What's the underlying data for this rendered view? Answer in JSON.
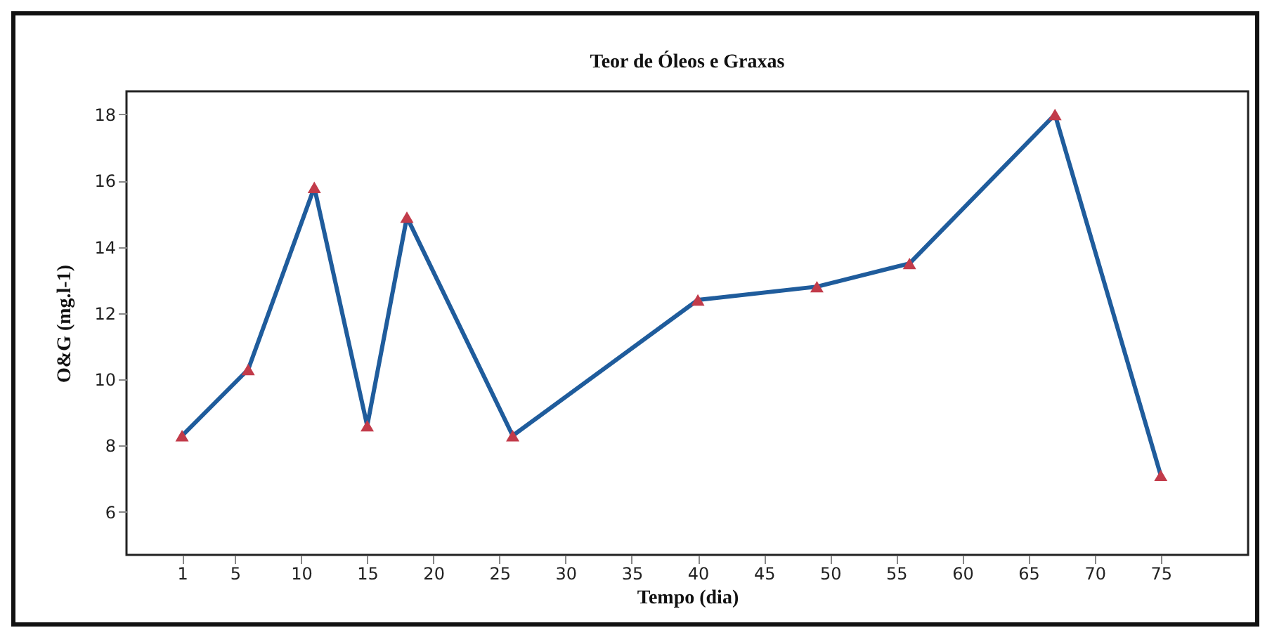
{
  "chart_data": {
    "type": "line",
    "title": "Teor de Óleos e Graxas",
    "xlabel": "Tempo (dia)",
    "ylabel": "O&G (mg.l-1)",
    "x": [
      1,
      6,
      11,
      15,
      18,
      26,
      40,
      49,
      56,
      67,
      75
    ],
    "series": [
      {
        "color": "#1f5c9c",
        "colors": [
          "#c23b4a",
          "#c23b4a",
          "#c23b4a",
          "#c23b4a",
          "#c23b4a",
          "#c23b4a",
          "#c23b4a",
          "#c23b4a",
          "#c23b4a",
          "#c23b4a",
          "#c23b4a"
        ],
        "values": [
          8.3,
          10.3,
          15.8,
          8.6,
          14.9,
          8.3,
          12.4,
          12.8,
          13.5,
          18.0,
          7.1
        ]
      }
    ],
    "marker": "triangle",
    "line_style": "solid",
    "grid": false,
    "xlim": [
      -3.2,
      81.6
    ],
    "xticks": [
      1,
      5,
      10,
      15,
      20,
      25,
      30,
      35,
      40,
      45,
      50,
      55,
      60,
      65,
      70,
      75
    ],
    "ylim": [
      4.7,
      18.7
    ],
    "yticks": [
      6,
      8,
      10,
      12,
      14,
      16,
      18
    ]
  }
}
